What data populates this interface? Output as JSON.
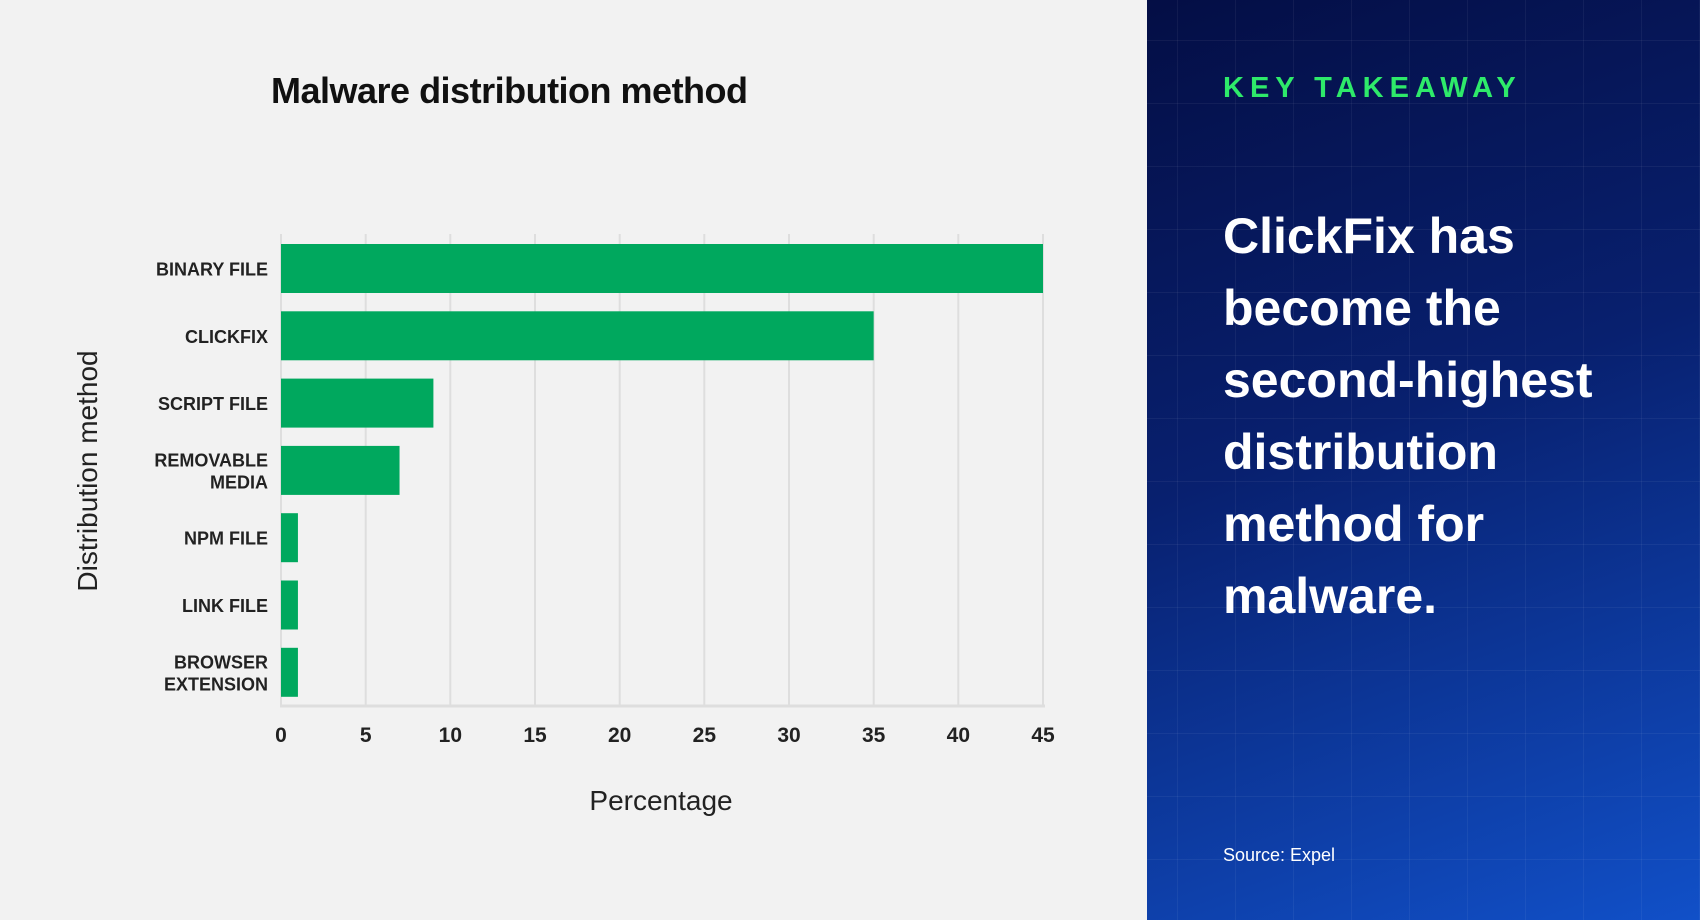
{
  "chart_data": {
    "type": "bar",
    "orientation": "horizontal",
    "title": "Malware distribution method",
    "xlabel": "Percentage",
    "ylabel": "Distribution method",
    "categories": [
      [
        "BINARY FILE"
      ],
      [
        "CLICKFIX"
      ],
      [
        "SCRIPT FILE"
      ],
      [
        "REMOVABLE",
        "MEDIA"
      ],
      [
        "NPM FILE"
      ],
      [
        "LINK FILE"
      ],
      [
        "BROWSER",
        "EXTENSION"
      ]
    ],
    "values": [
      45,
      35,
      9,
      7,
      1,
      1,
      1
    ],
    "xlim": [
      0,
      45
    ],
    "xticks": [
      0,
      5,
      10,
      15,
      20,
      25,
      30,
      35,
      40,
      45
    ],
    "grid": true,
    "bar_color": "#00a85e"
  },
  "panel": {
    "kicker": "KEY TAKEAWAY",
    "headline": "ClickFix has become the second-highest distribution method for malware.",
    "source": "Source: Expel",
    "kicker_color": "#2eea6a"
  }
}
